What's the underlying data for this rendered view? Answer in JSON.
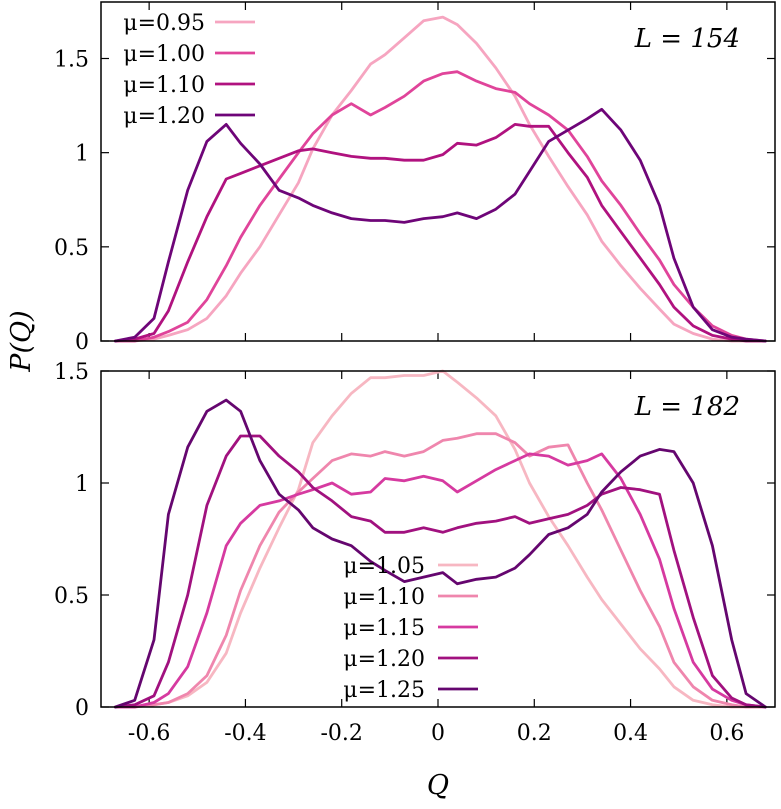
{
  "ylabel": "P(Q)",
  "xlabel": "Q",
  "chart_data": [
    {
      "type": "line",
      "annotation": "L = 154",
      "xlabel": "",
      "ylabel": "P(Q)",
      "xlim": [
        -0.7,
        0.7
      ],
      "ylim": [
        0,
        1.8
      ],
      "xticks": [],
      "yticks": [
        0,
        0.5,
        1,
        1.5
      ],
      "ytick_labels": [
        "0",
        "0.5",
        "1",
        "1.5"
      ],
      "legend_position": "top-left",
      "series": [
        {
          "name": "μ=0.95",
          "color": "#f6a5c0",
          "x": [
            -0.67,
            -0.63,
            -0.59,
            -0.56,
            -0.52,
            -0.48,
            -0.44,
            -0.41,
            -0.37,
            -0.33,
            -0.29,
            -0.26,
            -0.22,
            -0.18,
            -0.14,
            -0.11,
            -0.07,
            -0.03,
            0.01,
            0.04,
            0.08,
            0.12,
            0.16,
            0.19,
            0.23,
            0.27,
            0.31,
            0.34,
            0.38,
            0.42,
            0.46,
            0.49,
            0.53,
            0.57,
            0.61,
            0.64,
            0.68
          ],
          "y": [
            0,
            0,
            0.01,
            0.03,
            0.06,
            0.12,
            0.24,
            0.36,
            0.5,
            0.67,
            0.84,
            1.02,
            1.2,
            1.33,
            1.47,
            1.52,
            1.61,
            1.7,
            1.72,
            1.68,
            1.58,
            1.45,
            1.3,
            1.15,
            0.98,
            0.82,
            0.67,
            0.53,
            0.4,
            0.28,
            0.17,
            0.09,
            0.04,
            0.01,
            0,
            0,
            0
          ]
        },
        {
          "name": "μ=1.00",
          "color": "#e0449a",
          "x": [
            -0.67,
            -0.63,
            -0.59,
            -0.56,
            -0.52,
            -0.48,
            -0.44,
            -0.41,
            -0.37,
            -0.33,
            -0.29,
            -0.26,
            -0.22,
            -0.18,
            -0.14,
            -0.11,
            -0.07,
            -0.03,
            0.01,
            0.04,
            0.08,
            0.12,
            0.16,
            0.19,
            0.23,
            0.27,
            0.31,
            0.34,
            0.38,
            0.42,
            0.46,
            0.49,
            0.53,
            0.57,
            0.61,
            0.64,
            0.68
          ],
          "y": [
            0,
            0,
            0.02,
            0.05,
            0.1,
            0.22,
            0.4,
            0.55,
            0.72,
            0.86,
            1.0,
            1.1,
            1.2,
            1.26,
            1.2,
            1.24,
            1.3,
            1.38,
            1.42,
            1.43,
            1.38,
            1.34,
            1.32,
            1.26,
            1.2,
            1.12,
            0.98,
            0.85,
            0.72,
            0.57,
            0.43,
            0.3,
            0.18,
            0.08,
            0.03,
            0.01,
            0
          ]
        },
        {
          "name": "μ=1.10",
          "color": "#b0127f",
          "x": [
            -0.67,
            -0.63,
            -0.59,
            -0.56,
            -0.52,
            -0.48,
            -0.44,
            -0.41,
            -0.37,
            -0.33,
            -0.29,
            -0.26,
            -0.22,
            -0.18,
            -0.14,
            -0.11,
            -0.07,
            -0.03,
            0.01,
            0.04,
            0.08,
            0.12,
            0.16,
            0.19,
            0.23,
            0.27,
            0.31,
            0.34,
            0.38,
            0.42,
            0.46,
            0.49,
            0.53,
            0.57,
            0.61,
            0.64,
            0.68
          ],
          "y": [
            0,
            0.01,
            0.04,
            0.16,
            0.42,
            0.66,
            0.86,
            0.89,
            0.93,
            0.97,
            1.01,
            1.02,
            1.0,
            0.98,
            0.97,
            0.97,
            0.96,
            0.96,
            0.99,
            1.05,
            1.04,
            1.08,
            1.15,
            1.14,
            1.14,
            1.0,
            0.87,
            0.72,
            0.58,
            0.44,
            0.3,
            0.18,
            0.08,
            0.03,
            0.01,
            0,
            0
          ]
        },
        {
          "name": "μ=1.20",
          "color": "#6e0578",
          "x": [
            -0.67,
            -0.63,
            -0.59,
            -0.56,
            -0.52,
            -0.48,
            -0.44,
            -0.41,
            -0.37,
            -0.33,
            -0.29,
            -0.26,
            -0.22,
            -0.18,
            -0.14,
            -0.11,
            -0.07,
            -0.03,
            0.01,
            0.04,
            0.08,
            0.12,
            0.16,
            0.19,
            0.23,
            0.27,
            0.31,
            0.34,
            0.38,
            0.42,
            0.46,
            0.49,
            0.53,
            0.57,
            0.61,
            0.64,
            0.68
          ],
          "y": [
            0,
            0.02,
            0.12,
            0.42,
            0.8,
            1.06,
            1.15,
            1.05,
            0.94,
            0.8,
            0.76,
            0.72,
            0.68,
            0.65,
            0.64,
            0.64,
            0.63,
            0.65,
            0.66,
            0.68,
            0.65,
            0.7,
            0.78,
            0.9,
            1.06,
            1.12,
            1.18,
            1.23,
            1.12,
            0.96,
            0.72,
            0.44,
            0.18,
            0.06,
            0.02,
            0.01,
            0
          ]
        }
      ]
    },
    {
      "type": "line",
      "annotation": "L = 182",
      "xlabel": "Q",
      "ylabel": "P(Q)",
      "xlim": [
        -0.7,
        0.7
      ],
      "ylim": [
        0,
        1.5
      ],
      "xticks": [
        -0.6,
        -0.4,
        -0.2,
        0,
        0.2,
        0.4,
        0.6
      ],
      "xtick_labels": [
        "-0.6",
        "-0.4",
        "-0.2",
        "0",
        "0.2",
        "0.4",
        "0.6"
      ],
      "yticks": [
        0,
        0.5,
        1,
        1.5
      ],
      "ytick_labels": [
        "0",
        "0.5",
        "1",
        "1.5"
      ],
      "legend_position": "bottom-center",
      "series": [
        {
          "name": "μ=1.05",
          "color": "#f7b7c2",
          "x": [
            -0.67,
            -0.63,
            -0.59,
            -0.56,
            -0.52,
            -0.48,
            -0.44,
            -0.41,
            -0.37,
            -0.33,
            -0.29,
            -0.26,
            -0.22,
            -0.18,
            -0.14,
            -0.11,
            -0.07,
            -0.03,
            0.01,
            0.04,
            0.08,
            0.12,
            0.16,
            0.19,
            0.23,
            0.27,
            0.31,
            0.34,
            0.38,
            0.42,
            0.46,
            0.49,
            0.53,
            0.57,
            0.61,
            0.64,
            0.68
          ],
          "y": [
            0,
            0,
            0.01,
            0.02,
            0.05,
            0.11,
            0.24,
            0.42,
            0.62,
            0.8,
            0.97,
            1.18,
            1.3,
            1.4,
            1.47,
            1.47,
            1.48,
            1.48,
            1.5,
            1.45,
            1.38,
            1.3,
            1.15,
            1.0,
            0.85,
            0.72,
            0.58,
            0.48,
            0.37,
            0.26,
            0.17,
            0.09,
            0.03,
            0.01,
            0,
            0,
            0
          ]
        },
        {
          "name": "μ=1.10",
          "color": "#ef86ad",
          "x": [
            -0.67,
            -0.63,
            -0.59,
            -0.56,
            -0.52,
            -0.48,
            -0.44,
            -0.41,
            -0.37,
            -0.33,
            -0.29,
            -0.26,
            -0.22,
            -0.18,
            -0.14,
            -0.11,
            -0.07,
            -0.03,
            0.01,
            0.04,
            0.08,
            0.12,
            0.16,
            0.19,
            0.23,
            0.27,
            0.31,
            0.34,
            0.38,
            0.42,
            0.46,
            0.49,
            0.53,
            0.57,
            0.61,
            0.64,
            0.68
          ],
          "y": [
            0,
            0,
            0.01,
            0.02,
            0.06,
            0.14,
            0.32,
            0.52,
            0.72,
            0.87,
            0.96,
            1.02,
            1.1,
            1.13,
            1.12,
            1.14,
            1.12,
            1.14,
            1.19,
            1.2,
            1.22,
            1.22,
            1.18,
            1.12,
            1.16,
            1.17,
            1.0,
            0.88,
            0.7,
            0.52,
            0.36,
            0.2,
            0.09,
            0.03,
            0.01,
            0,
            0
          ]
        },
        {
          "name": "μ=1.15",
          "color": "#d63aa0",
          "x": [
            -0.67,
            -0.63,
            -0.59,
            -0.56,
            -0.52,
            -0.48,
            -0.44,
            -0.41,
            -0.37,
            -0.33,
            -0.29,
            -0.26,
            -0.22,
            -0.18,
            -0.14,
            -0.11,
            -0.07,
            -0.03,
            0.01,
            0.04,
            0.08,
            0.12,
            0.16,
            0.19,
            0.23,
            0.27,
            0.31,
            0.34,
            0.38,
            0.42,
            0.46,
            0.49,
            0.53,
            0.57,
            0.61,
            0.64,
            0.68
          ],
          "y": [
            0,
            0,
            0.02,
            0.06,
            0.18,
            0.42,
            0.72,
            0.82,
            0.9,
            0.92,
            0.95,
            0.97,
            1.0,
            0.95,
            0.96,
            1.02,
            1.01,
            1.03,
            1.01,
            0.96,
            1.01,
            1.06,
            1.1,
            1.13,
            1.12,
            1.08,
            1.1,
            1.13,
            1.02,
            0.86,
            0.66,
            0.44,
            0.2,
            0.08,
            0.03,
            0.01,
            0
          ]
        },
        {
          "name": "μ=1.20",
          "color": "#a1117f",
          "x": [
            -0.67,
            -0.63,
            -0.59,
            -0.56,
            -0.52,
            -0.48,
            -0.44,
            -0.41,
            -0.37,
            -0.33,
            -0.29,
            -0.26,
            -0.22,
            -0.18,
            -0.14,
            -0.11,
            -0.07,
            -0.03,
            0.01,
            0.04,
            0.08,
            0.12,
            0.16,
            0.19,
            0.23,
            0.27,
            0.31,
            0.34,
            0.38,
            0.42,
            0.46,
            0.49,
            0.53,
            0.57,
            0.61,
            0.64,
            0.68
          ],
          "y": [
            0,
            0.01,
            0.05,
            0.2,
            0.5,
            0.9,
            1.12,
            1.21,
            1.21,
            1.12,
            1.05,
            0.98,
            0.92,
            0.85,
            0.83,
            0.78,
            0.78,
            0.8,
            0.78,
            0.8,
            0.82,
            0.83,
            0.85,
            0.82,
            0.84,
            0.86,
            0.9,
            0.95,
            0.98,
            0.97,
            0.95,
            0.7,
            0.4,
            0.14,
            0.04,
            0.01,
            0
          ]
        },
        {
          "name": "μ=1.25",
          "color": "#65066f",
          "x": [
            -0.67,
            -0.63,
            -0.59,
            -0.56,
            -0.52,
            -0.48,
            -0.44,
            -0.41,
            -0.37,
            -0.33,
            -0.29,
            -0.26,
            -0.22,
            -0.18,
            -0.14,
            -0.11,
            -0.07,
            -0.03,
            0.01,
            0.04,
            0.08,
            0.12,
            0.16,
            0.19,
            0.23,
            0.27,
            0.31,
            0.34,
            0.38,
            0.42,
            0.46,
            0.49,
            0.53,
            0.57,
            0.61,
            0.64,
            0.68
          ],
          "y": [
            0,
            0.03,
            0.3,
            0.86,
            1.16,
            1.32,
            1.37,
            1.32,
            1.1,
            0.95,
            0.88,
            0.8,
            0.75,
            0.72,
            0.65,
            0.61,
            0.56,
            0.58,
            0.6,
            0.55,
            0.57,
            0.58,
            0.62,
            0.68,
            0.77,
            0.8,
            0.86,
            0.96,
            1.05,
            1.12,
            1.15,
            1.14,
            1.0,
            0.72,
            0.3,
            0.06,
            0
          ]
        }
      ]
    }
  ]
}
